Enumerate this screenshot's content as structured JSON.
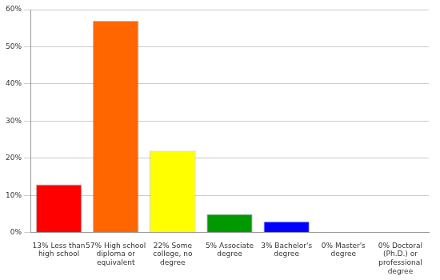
{
  "chart_data": {
    "type": "bar",
    "categories": [
      "13% Less than high school",
      "57% High school diploma or equivalent",
      "22% Some college, no degree",
      "5% Associate degree",
      "3% Bachelor's degree",
      "0% Master's degree",
      "0% Doctoral (Ph.D.) or professional degree"
    ],
    "values": [
      13,
      57,
      22,
      5,
      3,
      0,
      0
    ],
    "colors": [
      "#ff0000",
      "#ff6600",
      "#ffff00",
      "#009900",
      "#0000ff",
      "#9900ff",
      "#ff00ff"
    ],
    "ylim": [
      0,
      60
    ],
    "yticks": [
      {
        "value": 0,
        "label": "0%"
      },
      {
        "value": 10,
        "label": "10%"
      },
      {
        "value": 20,
        "label": "20%"
      },
      {
        "value": 30,
        "label": "30%"
      },
      {
        "value": 40,
        "label": "40%"
      },
      {
        "value": 50,
        "label": "50%"
      },
      {
        "value": 60,
        "label": "60%"
      }
    ],
    "grid": true
  }
}
